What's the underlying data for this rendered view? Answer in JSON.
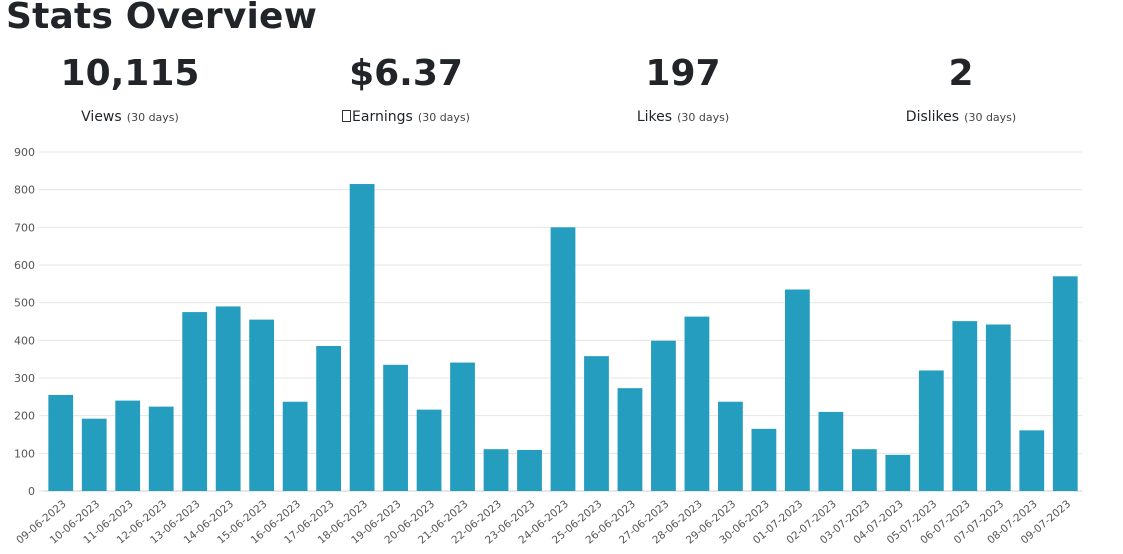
{
  "page": {
    "title": "Stats Overview"
  },
  "stats": [
    {
      "value": "10,115",
      "label": "Views",
      "sub": "(30 days)",
      "icon": ""
    },
    {
      "value": "$6.37",
      "label": "Earnings",
      "sub": "(30 days)",
      "icon": "earnings-icon"
    },
    {
      "value": "197",
      "label": "Likes",
      "sub": "(30 days)",
      "icon": ""
    },
    {
      "value": "2",
      "label": "Dislikes",
      "sub": "(30 days)",
      "icon": ""
    }
  ],
  "colors": {
    "bar": "#259dbf",
    "grid": "#e5e5e5",
    "axis_text": "#555555",
    "text": "#212529"
  },
  "chart_data": {
    "type": "bar",
    "title": "",
    "xlabel": "",
    "ylabel": "",
    "ylim": [
      0,
      900
    ],
    "yticks": [
      0,
      100,
      200,
      300,
      400,
      500,
      600,
      700,
      800,
      900
    ],
    "grid": true,
    "categories": [
      "09-06-2023",
      "10-06-2023",
      "11-06-2023",
      "12-06-2023",
      "13-06-2023",
      "14-06-2023",
      "15-06-2023",
      "16-06-2023",
      "17-06-2023",
      "18-06-2023",
      "19-06-2023",
      "20-06-2023",
      "21-06-2023",
      "22-06-2023",
      "23-06-2023",
      "24-06-2023",
      "25-06-2023",
      "26-06-2023",
      "27-06-2023",
      "28-06-2023",
      "29-06-2023",
      "30-06-2023",
      "01-07-2023",
      "02-07-2023",
      "03-07-2023",
      "04-07-2023",
      "05-07-2023",
      "06-07-2023",
      "07-07-2023",
      "08-07-2023",
      "09-07-2023"
    ],
    "values": [
      255,
      192,
      240,
      224,
      475,
      490,
      455,
      237,
      385,
      815,
      335,
      216,
      341,
      111,
      109,
      700,
      358,
      273,
      399,
      463,
      237,
      165,
      535,
      210,
      111,
      96,
      320,
      451,
      442,
      161,
      570
    ]
  }
}
